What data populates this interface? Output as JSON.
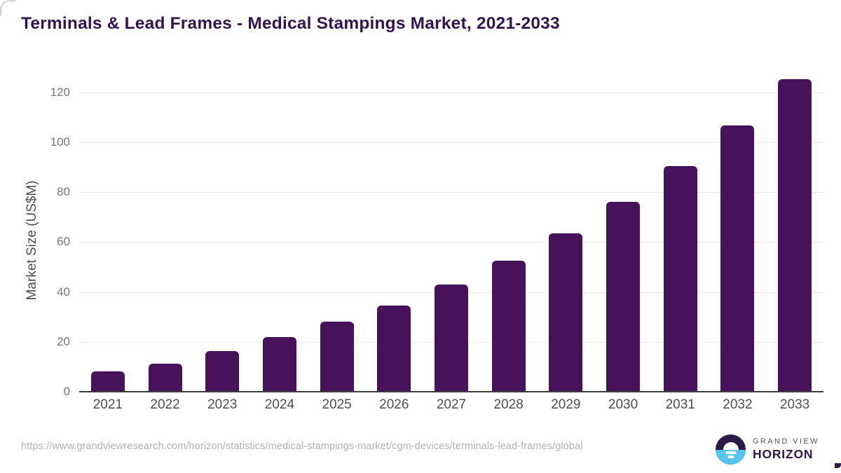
{
  "title": "Terminals & Lead Frames - Medical Stampings Market, 2021-2033",
  "source_url": "https://www.grandviewresearch.com/horizon/statistics/medical-stampings-market/cgm-devices/terminals-lead-frames/global",
  "logo": {
    "icon": "horizon-sunrise-icon",
    "line1": "GRAND VIEW",
    "line2": "HORIZON"
  },
  "colors": {
    "bar": "#471259",
    "title_text": "#321450",
    "axis_line": "#3d3d3d",
    "gridline": "#ebebeb",
    "x_tick_text": "#4d4d4d",
    "y_tick_text": "#757575",
    "url_text": "#b2b2b2",
    "logo_purple": "#2e1a47",
    "logo_blue": "#57c4ee"
  },
  "chart_data": {
    "type": "bar",
    "title": "Terminals & Lead Frames - Medical Stampings Market, 2021-2033",
    "categories": [
      "2021",
      "2022",
      "2023",
      "2024",
      "2025",
      "2026",
      "2027",
      "2028",
      "2029",
      "2030",
      "2031",
      "2032",
      "2033"
    ],
    "values": [
      8.2,
      11.2,
      16.4,
      21.9,
      28.0,
      34.6,
      43.0,
      52.4,
      63.4,
      76.1,
      90.3,
      106.8,
      125.2
    ],
    "xlabel": "",
    "ylabel": "Market Size (US$M)",
    "yticks": [
      0,
      20,
      40,
      60,
      80,
      100,
      120
    ],
    "ylim": [
      0,
      130
    ],
    "grid": true,
    "legend": false,
    "bar_color": "#471259"
  }
}
